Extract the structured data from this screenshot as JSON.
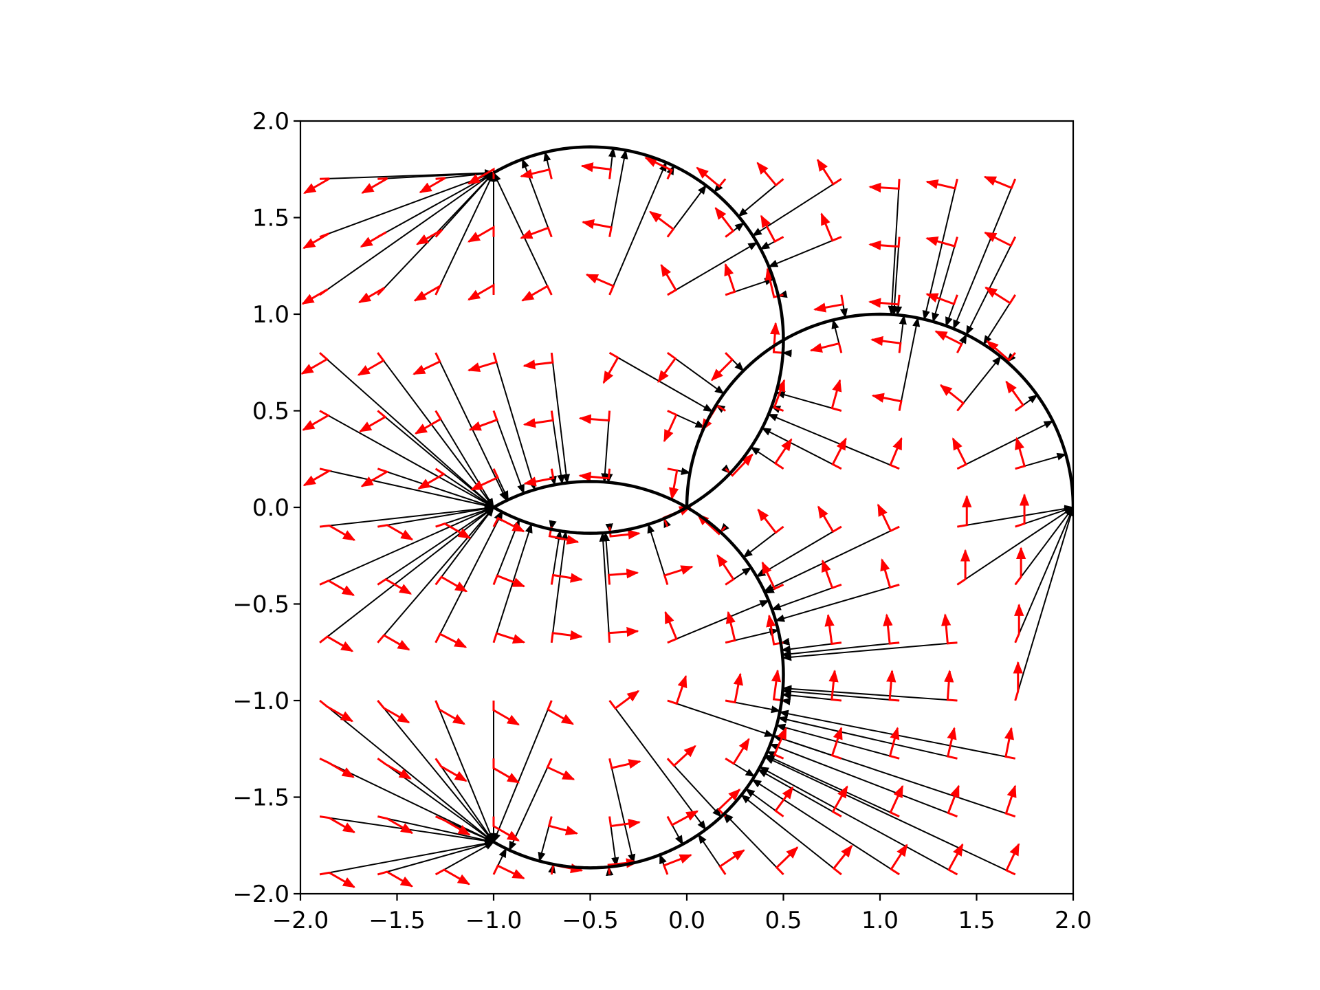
{
  "chart_data": {
    "type": "scatter",
    "title": "",
    "xlabel": "",
    "ylabel": "",
    "xlim": [
      -2.0,
      2.0
    ],
    "ylim": [
      -2.0,
      2.0
    ],
    "xticks": [
      "−2.0",
      "−1.5",
      "−1.0",
      "−0.5",
      "0.0",
      "0.5",
      "1.0",
      "1.5",
      "2.0"
    ],
    "yticks": [
      "−2.0",
      "−1.5",
      "−1.0",
      "−0.5",
      "0.0",
      "0.5",
      "1.0",
      "1.5",
      "2.0"
    ],
    "xtick_values": [
      -2.0,
      -1.5,
      -1.0,
      -0.5,
      0.0,
      0.5,
      1.0,
      1.5,
      2.0
    ],
    "ytick_values": [
      -2.0,
      -1.5,
      -1.0,
      -0.5,
      0.0,
      0.5,
      1.0,
      1.5,
      2.0
    ],
    "grid": false,
    "legend": "none",
    "circles": [
      {
        "center": [
          -0.5,
          0.866
        ],
        "radius": 1.0,
        "arc_from_deg": 240,
        "arc_to_deg": 120,
        "color": "#000000"
      },
      {
        "center": [
          1.0,
          0.0
        ],
        "radius": 1.0,
        "arc_from_deg": 0,
        "arc_to_deg": 180,
        "color": "#000000"
      },
      {
        "center": [
          -0.5,
          -0.866
        ],
        "radius": 1.0,
        "arc_from_deg": -120,
        "arc_to_deg": 120,
        "color": "#000000"
      }
    ],
    "sample_grid": {
      "x_start": -1.9,
      "x_step": 0.3,
      "x_count": 13,
      "y_start": -1.9,
      "y_step": 0.3,
      "y_count": 13
    },
    "projection_color": "#000000",
    "tangent_color": "#ff0000"
  }
}
